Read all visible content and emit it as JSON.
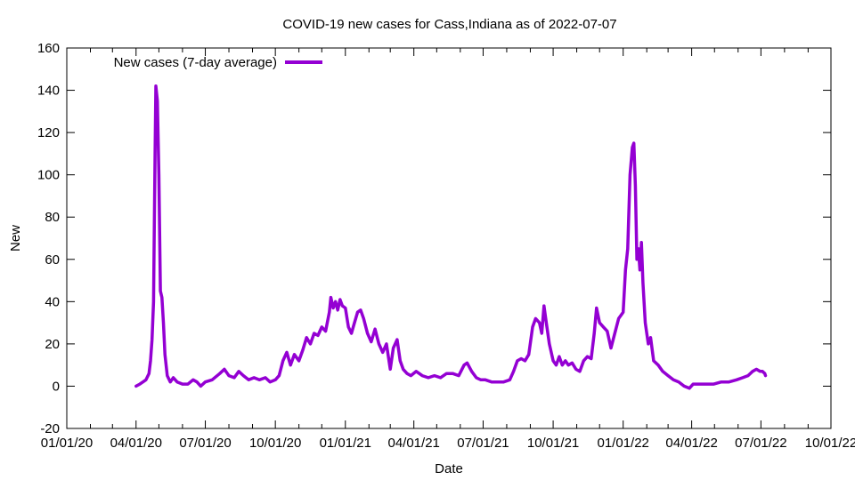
{
  "chart_data": {
    "type": "line",
    "title": "COVID-19 new cases for Cass,Indiana as of 2022-07-07",
    "xlabel": "Date",
    "ylabel": "New",
    "x_ticks": [
      "01/01/20",
      "04/01/20",
      "07/01/20",
      "10/01/20",
      "01/01/21",
      "04/01/21",
      "07/01/21",
      "10/01/21",
      "01/01/22",
      "04/01/22",
      "07/01/22",
      "10/01/22"
    ],
    "y_ticks": [
      "-20",
      "0",
      "20",
      "40",
      "60",
      "80",
      "100",
      "120",
      "140",
      "160"
    ],
    "xlim": [
      "2020-01-01",
      "2022-10-01"
    ],
    "ylim": [
      -20,
      160
    ],
    "grid": false,
    "legend_position": "top-left",
    "series": [
      {
        "name": "New cases (7-day average)",
        "color": "#9400d3",
        "points": [
          [
            "2020-04-01",
            0
          ],
          [
            "2020-04-06",
            1
          ],
          [
            "2020-04-10",
            2
          ],
          [
            "2020-04-14",
            3
          ],
          [
            "2020-04-18",
            6
          ],
          [
            "2020-04-20",
            12
          ],
          [
            "2020-04-22",
            22
          ],
          [
            "2020-04-24",
            40
          ],
          [
            "2020-04-26",
            110
          ],
          [
            "2020-04-27",
            142
          ],
          [
            "2020-04-29",
            135
          ],
          [
            "2020-05-01",
            100
          ],
          [
            "2020-05-03",
            45
          ],
          [
            "2020-05-05",
            42
          ],
          [
            "2020-05-07",
            30
          ],
          [
            "2020-05-09",
            15
          ],
          [
            "2020-05-12",
            5
          ],
          [
            "2020-05-16",
            2
          ],
          [
            "2020-05-20",
            4
          ],
          [
            "2020-05-25",
            2
          ],
          [
            "2020-06-01",
            1
          ],
          [
            "2020-06-08",
            1
          ],
          [
            "2020-06-15",
            3
          ],
          [
            "2020-06-20",
            2
          ],
          [
            "2020-06-25",
            0
          ],
          [
            "2020-07-01",
            2
          ],
          [
            "2020-07-10",
            3
          ],
          [
            "2020-07-20",
            6
          ],
          [
            "2020-07-26",
            8
          ],
          [
            "2020-08-01",
            5
          ],
          [
            "2020-08-08",
            4
          ],
          [
            "2020-08-14",
            7
          ],
          [
            "2020-08-20",
            5
          ],
          [
            "2020-08-27",
            3
          ],
          [
            "2020-09-03",
            4
          ],
          [
            "2020-09-10",
            3
          ],
          [
            "2020-09-18",
            4
          ],
          [
            "2020-09-24",
            2
          ],
          [
            "2020-10-01",
            3
          ],
          [
            "2020-10-06",
            5
          ],
          [
            "2020-10-11",
            12
          ],
          [
            "2020-10-16",
            16
          ],
          [
            "2020-10-21",
            10
          ],
          [
            "2020-10-26",
            15
          ],
          [
            "2020-11-01",
            12
          ],
          [
            "2020-11-06",
            17
          ],
          [
            "2020-11-11",
            23
          ],
          [
            "2020-11-16",
            20
          ],
          [
            "2020-11-21",
            25
          ],
          [
            "2020-11-26",
            24
          ],
          [
            "2020-12-01",
            28
          ],
          [
            "2020-12-06",
            26
          ],
          [
            "2020-12-11",
            35
          ],
          [
            "2020-12-13",
            42
          ],
          [
            "2020-12-16",
            37
          ],
          [
            "2020-12-19",
            40
          ],
          [
            "2020-12-22",
            36
          ],
          [
            "2020-12-25",
            41
          ],
          [
            "2020-12-28",
            38
          ],
          [
            "2021-01-01",
            37
          ],
          [
            "2021-01-05",
            28
          ],
          [
            "2021-01-09",
            25
          ],
          [
            "2021-01-13",
            30
          ],
          [
            "2021-01-17",
            35
          ],
          [
            "2021-01-21",
            36
          ],
          [
            "2021-01-25",
            32
          ],
          [
            "2021-01-30",
            25
          ],
          [
            "2021-02-04",
            21
          ],
          [
            "2021-02-09",
            27
          ],
          [
            "2021-02-14",
            20
          ],
          [
            "2021-02-19",
            16
          ],
          [
            "2021-02-24",
            20
          ],
          [
            "2021-03-01",
            8
          ],
          [
            "2021-03-05",
            18
          ],
          [
            "2021-03-10",
            22
          ],
          [
            "2021-03-14",
            12
          ],
          [
            "2021-03-18",
            8
          ],
          [
            "2021-03-23",
            6
          ],
          [
            "2021-03-28",
            5
          ],
          [
            "2021-04-04",
            7
          ],
          [
            "2021-04-12",
            5
          ],
          [
            "2021-04-20",
            4
          ],
          [
            "2021-04-28",
            5
          ],
          [
            "2021-05-06",
            4
          ],
          [
            "2021-05-14",
            6
          ],
          [
            "2021-05-22",
            6
          ],
          [
            "2021-05-30",
            5
          ],
          [
            "2021-06-06",
            10
          ],
          [
            "2021-06-10",
            11
          ],
          [
            "2021-06-16",
            7
          ],
          [
            "2021-06-22",
            4
          ],
          [
            "2021-06-28",
            3
          ],
          [
            "2021-07-04",
            3
          ],
          [
            "2021-07-12",
            2
          ],
          [
            "2021-07-20",
            2
          ],
          [
            "2021-07-28",
            2
          ],
          [
            "2021-08-05",
            3
          ],
          [
            "2021-08-10",
            7
          ],
          [
            "2021-08-15",
            12
          ],
          [
            "2021-08-20",
            13
          ],
          [
            "2021-08-25",
            12
          ],
          [
            "2021-08-30",
            15
          ],
          [
            "2021-09-04",
            28
          ],
          [
            "2021-09-08",
            32
          ],
          [
            "2021-09-13",
            30
          ],
          [
            "2021-09-16",
            25
          ],
          [
            "2021-09-19",
            38
          ],
          [
            "2021-09-22",
            30
          ],
          [
            "2021-09-26",
            20
          ],
          [
            "2021-10-01",
            12
          ],
          [
            "2021-10-05",
            10
          ],
          [
            "2021-10-09",
            14
          ],
          [
            "2021-10-13",
            10
          ],
          [
            "2021-10-17",
            12
          ],
          [
            "2021-10-21",
            10
          ],
          [
            "2021-10-26",
            11
          ],
          [
            "2021-10-31",
            8
          ],
          [
            "2021-11-05",
            7
          ],
          [
            "2021-11-10",
            12
          ],
          [
            "2021-11-15",
            14
          ],
          [
            "2021-11-20",
            13
          ],
          [
            "2021-11-24",
            25
          ],
          [
            "2021-11-27",
            37
          ],
          [
            "2021-12-01",
            30
          ],
          [
            "2021-12-06",
            28
          ],
          [
            "2021-12-11",
            26
          ],
          [
            "2021-12-16",
            18
          ],
          [
            "2021-12-21",
            25
          ],
          [
            "2021-12-26",
            32
          ],
          [
            "2022-01-01",
            35
          ],
          [
            "2022-01-04",
            55
          ],
          [
            "2022-01-07",
            65
          ],
          [
            "2022-01-10",
            100
          ],
          [
            "2022-01-13",
            113
          ],
          [
            "2022-01-15",
            115
          ],
          [
            "2022-01-17",
            95
          ],
          [
            "2022-01-19",
            60
          ],
          [
            "2022-01-21",
            65
          ],
          [
            "2022-01-23",
            55
          ],
          [
            "2022-01-25",
            68
          ],
          [
            "2022-01-27",
            49
          ],
          [
            "2022-01-30",
            30
          ],
          [
            "2022-02-03",
            20
          ],
          [
            "2022-02-06",
            23
          ],
          [
            "2022-02-10",
            12
          ],
          [
            "2022-02-16",
            10
          ],
          [
            "2022-02-22",
            7
          ],
          [
            "2022-03-01",
            5
          ],
          [
            "2022-03-08",
            3
          ],
          [
            "2022-03-15",
            2
          ],
          [
            "2022-03-22",
            0
          ],
          [
            "2022-03-29",
            -1
          ],
          [
            "2022-04-03",
            1
          ],
          [
            "2022-04-10",
            1
          ],
          [
            "2022-04-20",
            1
          ],
          [
            "2022-04-30",
            1
          ],
          [
            "2022-05-10",
            2
          ],
          [
            "2022-05-20",
            2
          ],
          [
            "2022-05-30",
            3
          ],
          [
            "2022-06-07",
            4
          ],
          [
            "2022-06-14",
            5
          ],
          [
            "2022-06-20",
            7
          ],
          [
            "2022-06-25",
            8
          ],
          [
            "2022-06-30",
            7
          ],
          [
            "2022-07-03",
            7
          ],
          [
            "2022-07-06",
            6
          ],
          [
            "2022-07-07",
            5
          ]
        ]
      }
    ]
  }
}
